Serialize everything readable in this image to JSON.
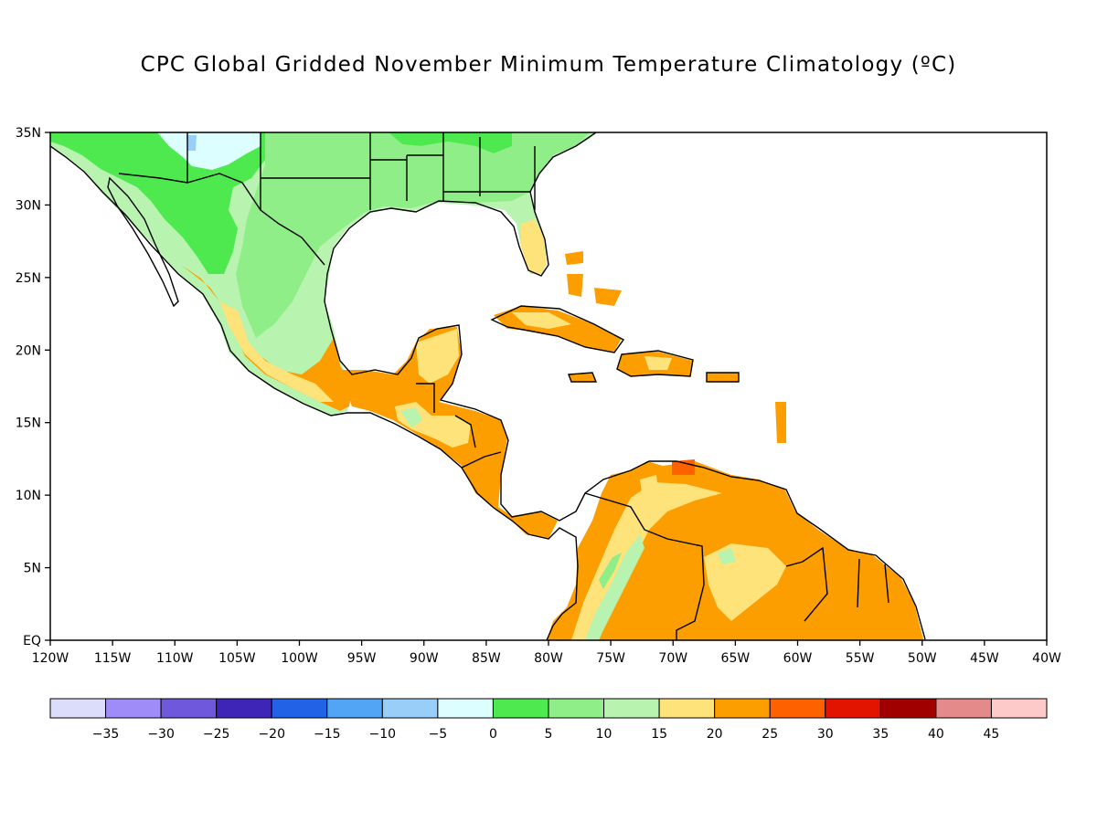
{
  "title": "CPC Global Gridded November Minimum Temperature Climatology (ºC)",
  "map": {
    "lon_range": [
      -120,
      -40
    ],
    "lat_range": [
      0,
      35
    ],
    "lon_labels": [
      "120W",
      "115W",
      "110W",
      "105W",
      "100W",
      "95W",
      "90W",
      "85W",
      "80W",
      "75W",
      "70W",
      "65W",
      "60W",
      "55W",
      "50W",
      "45W",
      "40W"
    ],
    "lat_labels": [
      "EQ",
      "5N",
      "10N",
      "15N",
      "20N",
      "25N",
      "30N",
      "35N"
    ]
  },
  "colorbar": {
    "labels": [
      "-35",
      "-30",
      "-25",
      "-20",
      "-15",
      "-10",
      "-5",
      "0",
      "5",
      "10",
      "15",
      "20",
      "25",
      "30",
      "35",
      "40",
      "45"
    ],
    "colors": [
      "#dcdcfb",
      "#a08cf8",
      "#7058dc",
      "#3f25b7",
      "#2262e6",
      "#52a4f4",
      "#98cef8",
      "#dcfefe",
      "#4ee94e",
      "#90ee88",
      "#b8f4b0",
      "#fee27a",
      "#fc9e00",
      "#fe6100",
      "#e21400",
      "#a00000",
      "#e48a8a",
      "#fec9c9"
    ]
  }
}
